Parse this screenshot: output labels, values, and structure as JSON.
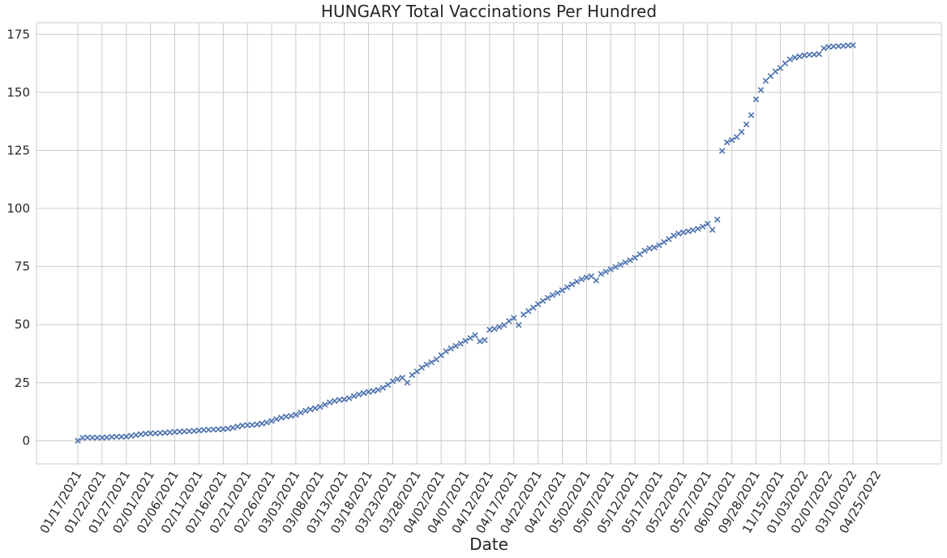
{
  "chart_data": {
    "type": "scatter",
    "title": "HUNGARY   Total Vaccinations Per Hundred",
    "xlabel": "Date",
    "ylabel": "",
    "marker": "x",
    "color": "#4c72b0",
    "grid": true,
    "ylim": [
      -10,
      180
    ],
    "yticks": [
      0,
      25,
      50,
      75,
      100,
      125,
      150,
      175
    ],
    "x_tick_labels": [
      "01/17/2021",
      "01/22/2021",
      "01/27/2021",
      "02/01/2021",
      "02/06/2021",
      "02/11/2021",
      "02/16/2021",
      "02/21/2021",
      "02/26/2021",
      "03/03/2021",
      "03/08/2021",
      "03/13/2021",
      "03/18/2021",
      "03/23/2021",
      "03/28/2021",
      "04/02/2021",
      "04/07/2021",
      "04/12/2021",
      "04/17/2021",
      "04/22/2021",
      "04/27/2021",
      "05/02/2021",
      "05/07/2021",
      "05/12/2021",
      "05/17/2021",
      "05/22/2021",
      "05/27/2021",
      "06/01/2021",
      "09/28/2021",
      "11/15/2021",
      "01/03/2022",
      "02/07/2022",
      "03/10/2022",
      "04/25/2022"
    ],
    "y": [
      0.0,
      1.2,
      1.4,
      1.3,
      1.3,
      1.3,
      1.4,
      1.6,
      1.7,
      1.7,
      1.8,
      2.1,
      2.4,
      2.8,
      3.0,
      3.2,
      3.2,
      3.3,
      3.4,
      3.6,
      3.8,
      3.9,
      4.0,
      4.1,
      4.2,
      4.4,
      4.6,
      4.7,
      4.8,
      4.9,
      5.0,
      5.2,
      5.6,
      6.1,
      6.5,
      6.7,
      6.8,
      7.0,
      7.4,
      7.8,
      8.5,
      9.3,
      9.9,
      10.4,
      10.7,
      11.2,
      12.1,
      12.9,
      13.5,
      14.0,
      14.6,
      15.5,
      16.5,
      17.1,
      17.6,
      17.8,
      18.3,
      19.2,
      19.9,
      20.5,
      21.0,
      21.4,
      21.9,
      22.8,
      24.1,
      25.6,
      26.5,
      27.1,
      25.0,
      28.3,
      29.8,
      31.5,
      32.8,
      33.8,
      35.0,
      36.8,
      38.5,
      39.7,
      40.8,
      41.8,
      43.0,
      44.2,
      45.4,
      42.8,
      43.3,
      47.8,
      48.2,
      49.0,
      49.8,
      51.5,
      52.8,
      49.8,
      54.3,
      55.8,
      57.3,
      58.8,
      60.2,
      61.5,
      62.7,
      63.6,
      64.8,
      66.1,
      67.3,
      68.5,
      69.5,
      70.3,
      70.8,
      69.0,
      71.8,
      72.8,
      73.8,
      74.8,
      75.8,
      76.8,
      77.7,
      78.8,
      80.3,
      81.8,
      82.8,
      83.2,
      84.2,
      85.5,
      86.8,
      88.3,
      89.2,
      89.7,
      90.2,
      90.7,
      91.3,
      92.2,
      93.4,
      90.8,
      95.2,
      124.8,
      128.5,
      129.5,
      130.8,
      133.0,
      136.2,
      140.2,
      147.0,
      151.0,
      155.0,
      157.0,
      159.0,
      160.5,
      162.5,
      164.2,
      165.0,
      165.5,
      166.0,
      166.2,
      166.3,
      166.5,
      169.0,
      169.6,
      169.8,
      169.9,
      170.0,
      170.2,
      170.3
    ]
  }
}
